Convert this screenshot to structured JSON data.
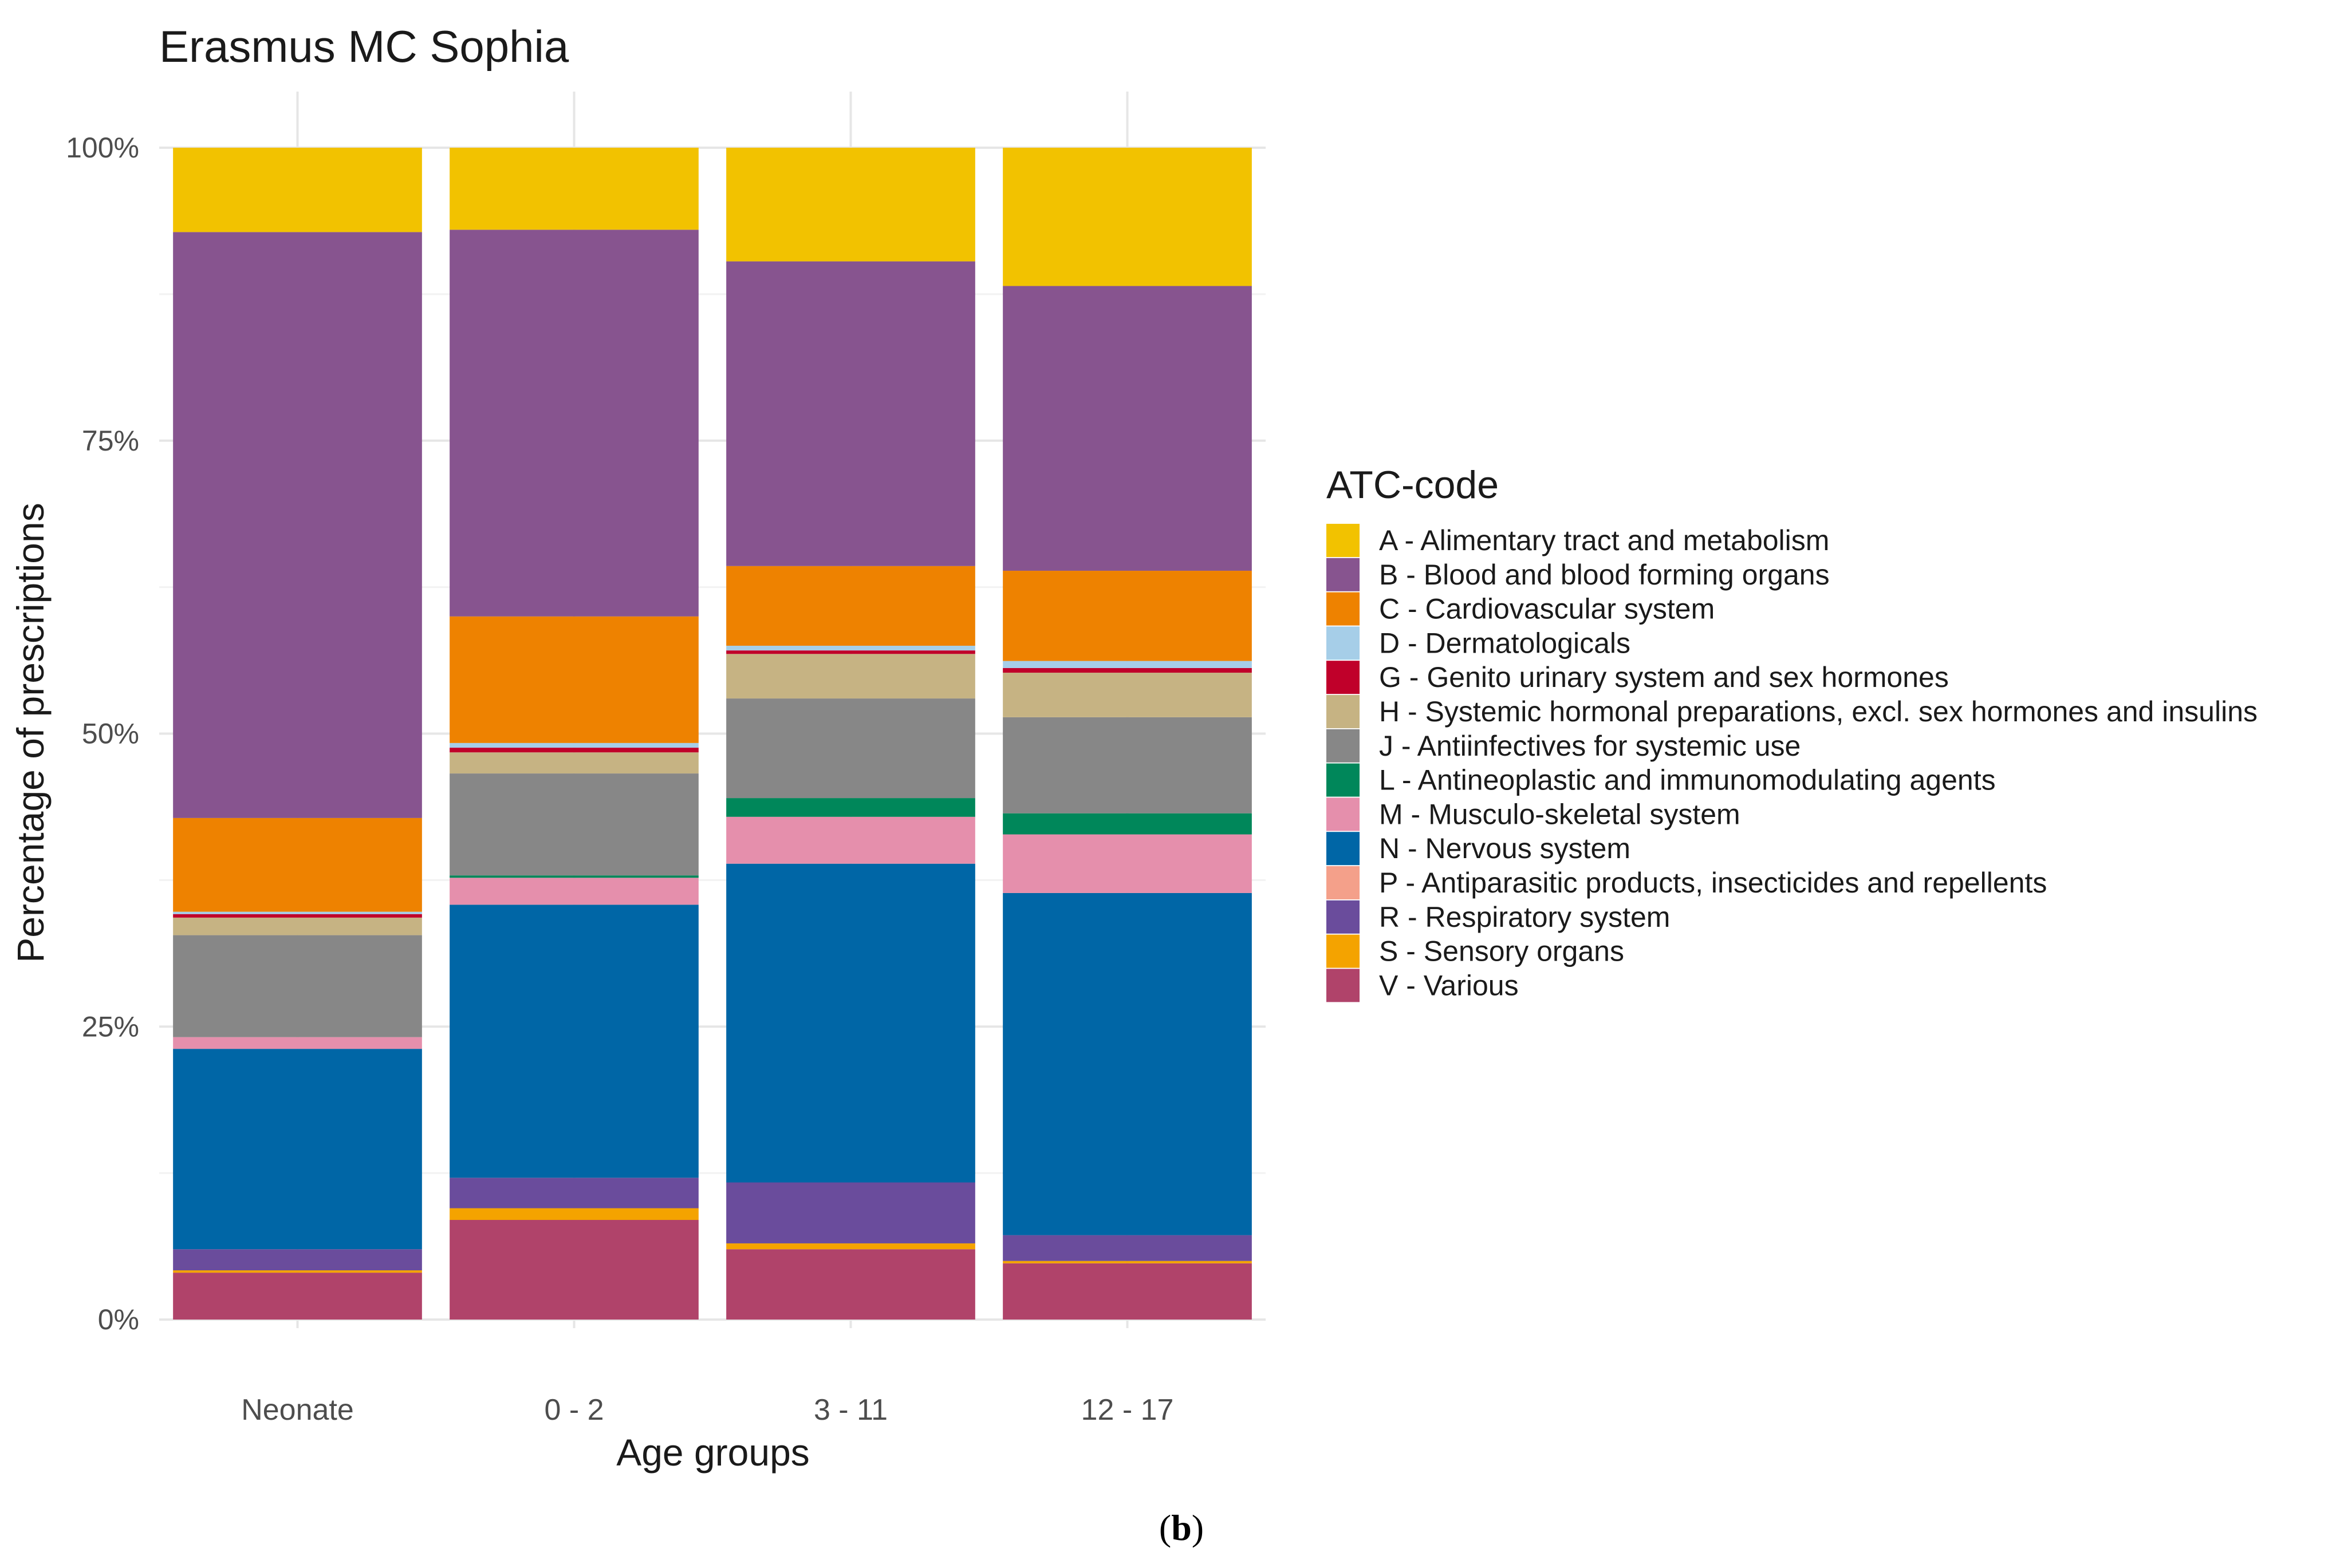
{
  "figure": {
    "caption_open": "(",
    "caption_letter": "b",
    "caption_close": ")"
  },
  "chart_data": {
    "type": "bar",
    "stacked": true,
    "title": "Erasmus MC Sophia",
    "xlabel": "Age groups",
    "ylabel": "Percentage of prescriptions",
    "ylim": [
      0,
      100
    ],
    "yticks": [
      0,
      25,
      50,
      75,
      100
    ],
    "ytick_labels": [
      "0%",
      "25%",
      "50%",
      "75%",
      "100%"
    ],
    "grid": true,
    "legend_position": "right",
    "legend_title": "ATC-code",
    "categories": [
      "Neonate",
      "0 - 2",
      "3 - 11",
      "12 - 17"
    ],
    "series": [
      {
        "code": "V",
        "name": "V - Various",
        "color": "#B0436A",
        "values": [
          4.0,
          8.5,
          6.0,
          4.8
        ]
      },
      {
        "code": "S",
        "name": "S - Sensory organs",
        "color": "#F4A300",
        "values": [
          0.2,
          1.0,
          0.5,
          0.2
        ]
      },
      {
        "code": "R",
        "name": "R - Respiratory system",
        "color": "#6A4C9C",
        "values": [
          1.8,
          2.6,
          5.2,
          2.2
        ]
      },
      {
        "code": "P",
        "name": "P - Antiparasitic products, insecticides and repellents",
        "color": "#F4A08A",
        "values": [
          0.0,
          0.0,
          0.0,
          0.0
        ]
      },
      {
        "code": "N",
        "name": "N - Nervous system",
        "color": "#0066A6",
        "values": [
          17.1,
          23.3,
          27.2,
          29.2
        ]
      },
      {
        "code": "M",
        "name": "M - Musculo-skeletal system",
        "color": "#E58FAC",
        "values": [
          1.0,
          2.3,
          4.0,
          5.0
        ]
      },
      {
        "code": "L",
        "name": "L - Antineoplastic and immunomodulating agents",
        "color": "#00875A",
        "values": [
          0.0,
          0.2,
          1.6,
          1.8
        ]
      },
      {
        "code": "J",
        "name": "J - Antiinfectives for systemic use",
        "color": "#878787",
        "values": [
          8.7,
          8.7,
          8.5,
          8.2
        ]
      },
      {
        "code": "H",
        "name": "H - Systemic hormonal preparations, excl. sex hormones and insulins",
        "color": "#C6B383",
        "values": [
          1.5,
          1.8,
          3.8,
          3.8
        ]
      },
      {
        "code": "G",
        "name": "G - Genito urinary system and sex hormones",
        "color": "#C0002A",
        "values": [
          0.3,
          0.4,
          0.3,
          0.4
        ]
      },
      {
        "code": "D",
        "name": "D - Dermatologicals",
        "color": "#A6CEE8",
        "values": [
          0.2,
          0.4,
          0.4,
          0.6
        ]
      },
      {
        "code": "C",
        "name": "C - Cardiovascular system",
        "color": "#EE8200",
        "values": [
          8.0,
          10.8,
          6.8,
          7.7
        ]
      },
      {
        "code": "B",
        "name": "B - Blood and blood forming organs",
        "color": "#87548F",
        "values": [
          50.0,
          33.0,
          26.0,
          24.3
        ]
      },
      {
        "code": "A",
        "name": "A - Alimentary tract and metabolism",
        "color": "#F2C200",
        "values": [
          7.2,
          7.0,
          9.7,
          11.8
        ]
      }
    ],
    "legend_order": [
      "A",
      "B",
      "C",
      "D",
      "G",
      "H",
      "J",
      "L",
      "M",
      "N",
      "P",
      "R",
      "S",
      "V"
    ]
  }
}
